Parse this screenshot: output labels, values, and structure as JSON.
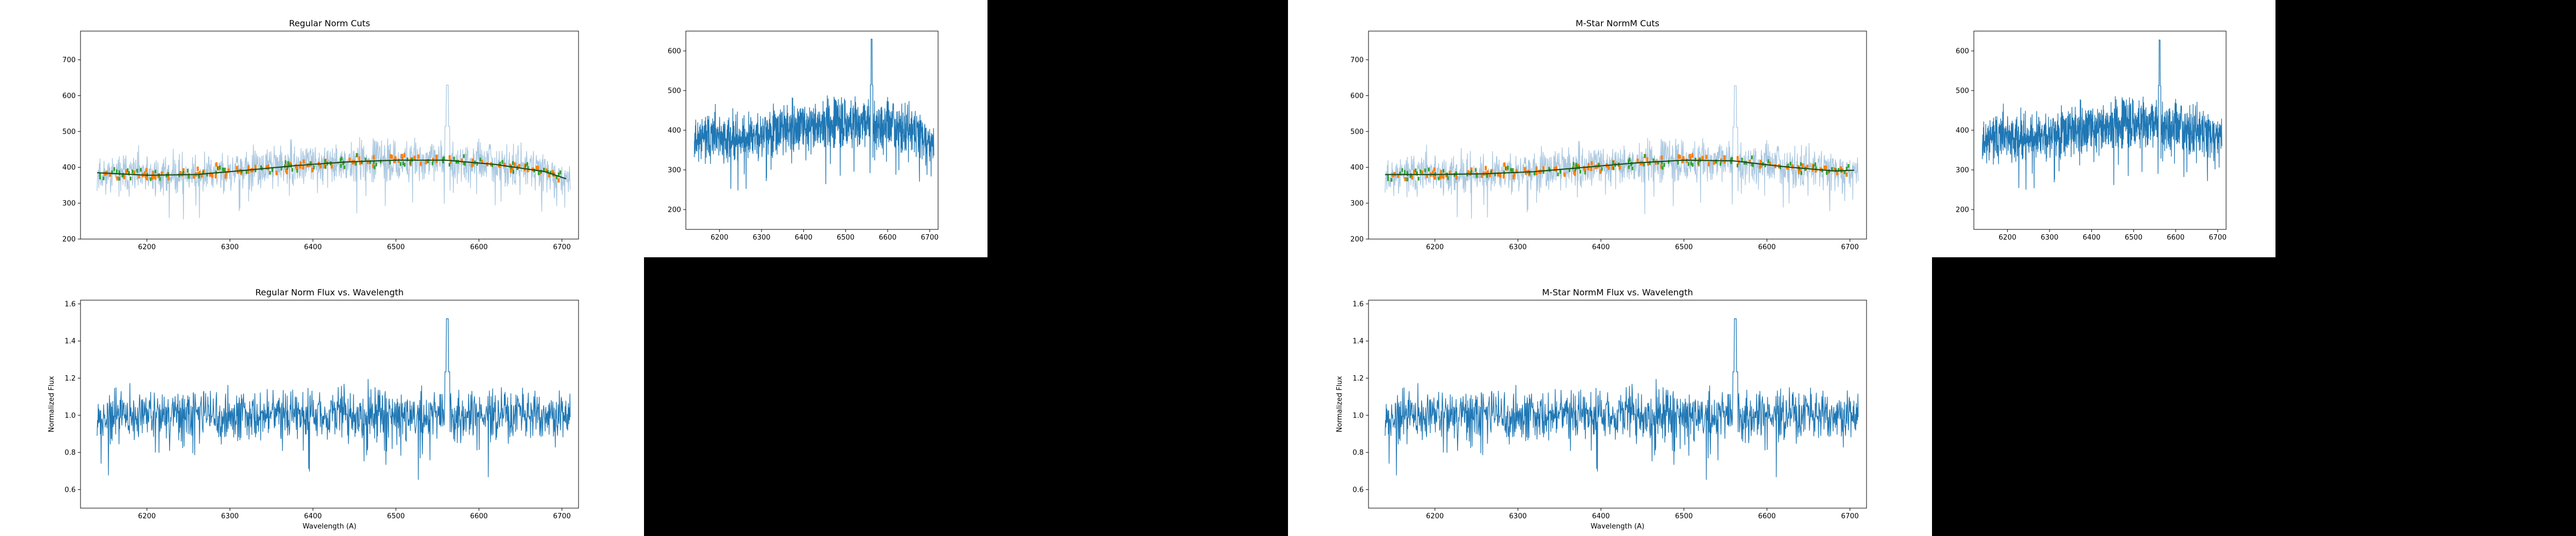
{
  "colors": {
    "background": "#000000",
    "panel": "#ffffff",
    "raw_spectrum": "#1f77b4",
    "raw_spectrum_faint": "#aac8e0",
    "cut_points": "#ff7f0e",
    "fit_points": "#2ca02c",
    "continuum_fit": "#1b4d1b"
  },
  "panels": [
    {
      "id": "regular-cuts",
      "title": "Regular Norm Cuts",
      "xlabel": "",
      "ylabel": "",
      "xticks": [
        6200,
        6300,
        6400,
        6500,
        6600,
        6700
      ],
      "yticks": [
        200,
        300,
        400,
        500,
        600,
        700
      ]
    },
    {
      "id": "regular-raw",
      "title": "",
      "xlabel": "",
      "ylabel": "",
      "xticks": [
        6200,
        6300,
        6400,
        6500,
        6600,
        6700
      ],
      "yticks": [
        200,
        300,
        400,
        500,
        600
      ]
    },
    {
      "id": "regular-flux",
      "title": "Regular Norm Flux vs. Wavelength",
      "xlabel": "Wavelength (A)",
      "ylabel": "Normalized Flux",
      "xticks": [
        6200,
        6300,
        6400,
        6500,
        6600,
        6700
      ],
      "yticks": [
        "0.6",
        "0.8",
        "1.0",
        "1.2",
        "1.4",
        "1.6"
      ]
    },
    {
      "id": "mstar-cuts",
      "title": "M-Star NormM Cuts",
      "xlabel": "",
      "ylabel": "",
      "xticks": [
        6200,
        6300,
        6400,
        6500,
        6600,
        6700
      ],
      "yticks": [
        200,
        300,
        400,
        500,
        600,
        700
      ]
    },
    {
      "id": "mstar-raw",
      "title": "",
      "xlabel": "",
      "ylabel": "",
      "xticks": [
        6200,
        6300,
        6400,
        6500,
        6600,
        6700
      ],
      "yticks": [
        200,
        300,
        400,
        500,
        600
      ]
    },
    {
      "id": "mstar-flux",
      "title": "M-Star NormM Flux vs. Wavelength",
      "xlabel": "Wavelength (A)",
      "ylabel": "Normalized Flux",
      "xticks": [
        6200,
        6300,
        6400,
        6500,
        6600,
        6700
      ],
      "yticks": [
        "0.6",
        "0.8",
        "1.0",
        "1.2",
        "1.4",
        "1.6"
      ]
    }
  ],
  "chart_data": [
    {
      "type": "line",
      "title": "Regular Norm Cuts",
      "xlim": [
        6120,
        6720
      ],
      "ylim": [
        200,
        780
      ],
      "series": [
        {
          "values_description": "raw spectrum (faint)",
          "x_range": [
            6140,
            6710
          ],
          "y_typical": [
            310,
            470
          ],
          "peak": {
            "x": 6562,
            "y": 630
          }
        },
        {
          "values_description": "cut points",
          "x_range": [
            6140,
            6700
          ],
          "y_typical": [
            370,
            430
          ]
        },
        {
          "values_description": "continuum fit",
          "x": [
            6140,
            6200,
            6260,
            6320,
            6380,
            6440,
            6500,
            6560,
            6620,
            6680,
            6705
          ],
          "y": [
            385,
            378,
            380,
            392,
            405,
            415,
            420,
            420,
            408,
            388,
            368
          ]
        }
      ]
    },
    {
      "type": "line",
      "title": "",
      "xlim": [
        6120,
        6720
      ],
      "ylim": [
        150,
        650
      ],
      "series": [
        {
          "values_description": "raw spectrum",
          "x_range": [
            6140,
            6710
          ],
          "y_typical": [
            310,
            470
          ],
          "peak": {
            "x": 6562,
            "y": 630
          }
        }
      ]
    },
    {
      "type": "line",
      "title": "Regular Norm Flux vs. Wavelength",
      "xlabel": "Wavelength (A)",
      "ylabel": "Normalized Flux",
      "xlim": [
        6120,
        6720
      ],
      "ylim": [
        0.5,
        1.62
      ],
      "series": [
        {
          "values_description": "normalized flux",
          "x_range": [
            6140,
            6710
          ],
          "y_typical": [
            0.85,
            1.15
          ],
          "peak": {
            "x": 6562,
            "y": 1.52
          }
        }
      ]
    },
    {
      "type": "line",
      "title": "M-Star NormM Cuts",
      "xlim": [
        6120,
        6720
      ],
      "ylim": [
        200,
        780
      ],
      "series": [
        {
          "values_description": "raw spectrum (faint)",
          "x_range": [
            6140,
            6710
          ],
          "y_typical": [
            310,
            470
          ],
          "peak": {
            "x": 6562,
            "y": 630
          }
        },
        {
          "values_description": "cut points",
          "x_range": [
            6140,
            6700
          ],
          "y_typical": [
            370,
            430
          ]
        },
        {
          "values_description": "continuum fit",
          "x": [
            6140,
            6200,
            6260,
            6320,
            6380,
            6440,
            6500,
            6560,
            6620,
            6680,
            6705
          ],
          "y": [
            380,
            380,
            382,
            388,
            400,
            412,
            420,
            418,
            402,
            390,
            392
          ]
        }
      ]
    },
    {
      "type": "line",
      "title": "",
      "xlim": [
        6120,
        6720
      ],
      "ylim": [
        150,
        650
      ],
      "series": [
        {
          "values_description": "raw spectrum",
          "x_range": [
            6140,
            6710
          ],
          "y_typical": [
            310,
            470
          ],
          "peak": {
            "x": 6562,
            "y": 630
          }
        }
      ]
    },
    {
      "type": "line",
      "title": "M-Star NormM Flux vs. Wavelength",
      "xlabel": "Wavelength (A)",
      "ylabel": "Normalized Flux",
      "xlim": [
        6120,
        6720
      ],
      "ylim": [
        0.5,
        1.62
      ],
      "series": [
        {
          "values_description": "normalized flux",
          "x_range": [
            6140,
            6710
          ],
          "y_typical": [
            0.85,
            1.15
          ],
          "peak": {
            "x": 6562,
            "y": 1.52
          }
        }
      ]
    }
  ]
}
